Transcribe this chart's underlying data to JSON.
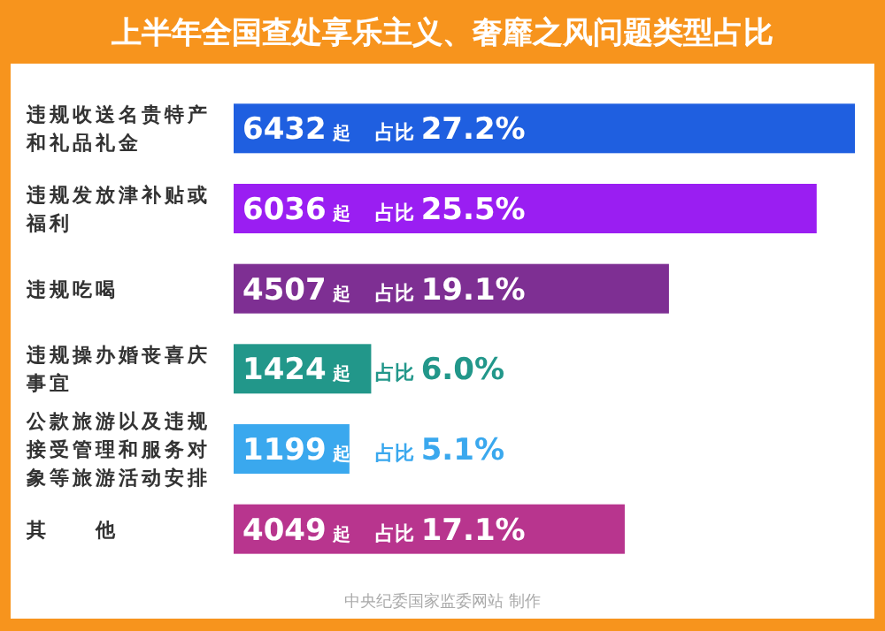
{
  "chart_data": {
    "type": "bar",
    "orientation": "horizontal",
    "title": "上半年全国查处享乐主义、奢靡之风问题类型占比",
    "categories": [
      "违规收送名贵特产和礼品礼金",
      "违规发放津补贴或福利",
      "违规吃喝",
      "违规操办婚丧喜庆事宜",
      "公款旅游以及违规接受管理和服务对象等旅游活动安排",
      "其　　他"
    ],
    "values": [
      6432,
      6036,
      4507,
      1424,
      1199,
      4049
    ],
    "colors": [
      "#1f5fe0",
      "#9a1ef2",
      "#7e2f93",
      "#22978a",
      "#3aa8ee",
      "#b8358e"
    ],
    "value_labels": [
      "6432 起",
      "6036 起",
      "4507 起",
      "1424 起",
      "1199 起",
      "4049 起"
    ],
    "annotations": [
      "占比 27.2%",
      "占比 25.5%",
      "占比 19.1%",
      "占比 6.0%",
      "占比 5.1%",
      "占比 17.1%",
      "中央纪委国家监委网站 制作"
    ]
  }
}
